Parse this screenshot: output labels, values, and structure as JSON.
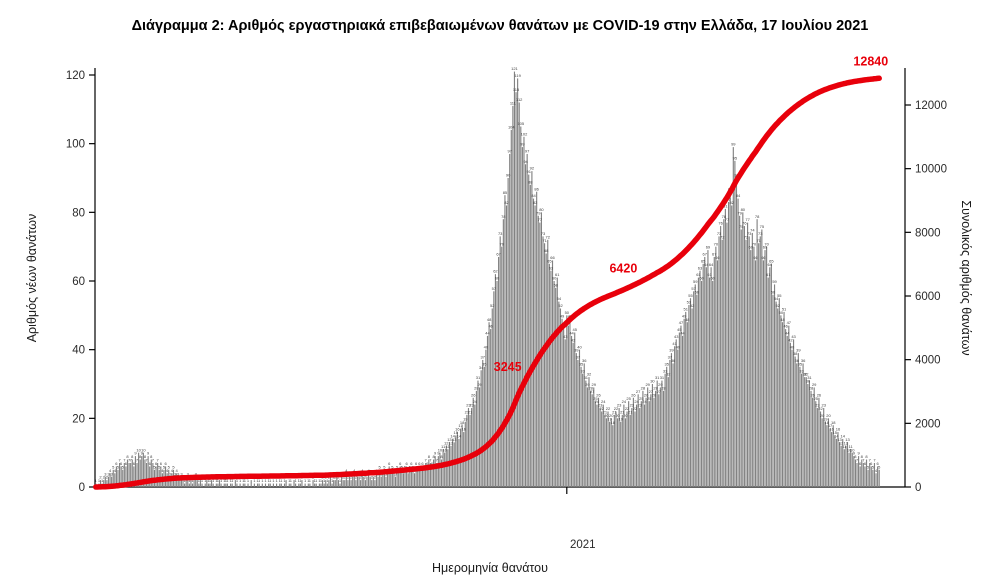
{
  "title": {
    "text": "Διάγραμμα 2: Αριθμός εργαστηριακά επιβεβαιωμένων θανάτων με COVID-19 στην Ελλάδα, 17 Ιουλίου 2021"
  },
  "axes": {
    "x_label": "Ημερομηνία θανάτου",
    "y_left_label": "Αριθμός νέων θανάτων",
    "y_right_label": "Συνολικός αριθμός θανάτων"
  },
  "colors": {
    "bar": "#828282",
    "line": "#e8000b",
    "axis": "#000000",
    "tick_text": "#2b2b2b",
    "bar_label": "#3c3c3c",
    "annotation": "#e8000b"
  },
  "chart_data": {
    "type": "bar",
    "title": "Διάγραμμα 2: Αριθμός εργαστηριακά επιβεβαιωμένων θανάτων με COVID-19 στην Ελλάδα, 17 Ιουλίου 2021",
    "xlabel": "Ημερομηνία θανάτου",
    "ylabel": "Αριθμός νέων θανάτων",
    "ylabel_right": "Συνολικός αριθμός θανάτων",
    "legend": "none",
    "grid": false,
    "x_ticks": [
      {
        "index": 297,
        "label": "2021"
      }
    ],
    "y_left": {
      "min": 0,
      "max": 120,
      "ticks": [
        0,
        20,
        40,
        60,
        80,
        100,
        120
      ]
    },
    "y_right": {
      "min": 0,
      "max": 12000,
      "ticks": [
        0,
        2000,
        4000,
        6000,
        8000,
        10000,
        12000
      ]
    },
    "line_overlay": {
      "name": "cumulative-deaths",
      "derived": "cumulative_sum_of_values",
      "final_value": 12840
    },
    "annotations": [
      {
        "label": "3245",
        "index": 271
      },
      {
        "label": "6420",
        "index": 344
      },
      {
        "label": "12840",
        "index": 494
      }
    ],
    "values": [
      1,
      0,
      1,
      2,
      1,
      2,
      3,
      2,
      3,
      4,
      3,
      5,
      4,
      6,
      5,
      7,
      6,
      5,
      7,
      6,
      8,
      7,
      7,
      8,
      6,
      9,
      7,
      10,
      8,
      9,
      10,
      8,
      7,
      9,
      6,
      8,
      7,
      5,
      6,
      7,
      5,
      6,
      4,
      5,
      6,
      4,
      5,
      3,
      4,
      5,
      3,
      4,
      3,
      2,
      3,
      2,
      1,
      2,
      3,
      1,
      2,
      1,
      2,
      3,
      2,
      1,
      2,
      1,
      0,
      1,
      2,
      1,
      1,
      2,
      1,
      0,
      1,
      1,
      2,
      1,
      0,
      1,
      1,
      1,
      0,
      1,
      1,
      0,
      2,
      1,
      0,
      1,
      0,
      1,
      1,
      0,
      1,
      0,
      2,
      0,
      1,
      0,
      1,
      1,
      0,
      1,
      0,
      1,
      0,
      1,
      1,
      0,
      1,
      0,
      1,
      0,
      1,
      1,
      0,
      1,
      2,
      0,
      1,
      1,
      0,
      2,
      1,
      0,
      1,
      1,
      2,
      0,
      1,
      0,
      1,
      1,
      0,
      2,
      1,
      1,
      0,
      1,
      1,
      2,
      1,
      2,
      1,
      2,
      3,
      1,
      2,
      2,
      3,
      2,
      1,
      3,
      2,
      2,
      4,
      2,
      3,
      2,
      3,
      4,
      2,
      3,
      3,
      2,
      4,
      3,
      2,
      3,
      4,
      3,
      2,
      3,
      2,
      4,
      3,
      5,
      3,
      4,
      5,
      3,
      4,
      6,
      4,
      5,
      4,
      3,
      5,
      4,
      6,
      5,
      4,
      5,
      6,
      4,
      5,
      6,
      5,
      4,
      6,
      5,
      6,
      5,
      6,
      5,
      7,
      6,
      8,
      7,
      6,
      8,
      9,
      7,
      9,
      10,
      8,
      11,
      10,
      12,
      11,
      13,
      12,
      14,
      13,
      15,
      16,
      14,
      17,
      18,
      16,
      19,
      21,
      23,
      21,
      23,
      26,
      24,
      28,
      31,
      29,
      34,
      37,
      35,
      40,
      44,
      48,
      46,
      52,
      57,
      62,
      60,
      67,
      73,
      70,
      78,
      85,
      82,
      90,
      97,
      104,
      111,
      121,
      115,
      119,
      112,
      105,
      99,
      102,
      94,
      97,
      91,
      88,
      92,
      84,
      82,
      86,
      79,
      77,
      80,
      73,
      71,
      68,
      72,
      65,
      63,
      66,
      60,
      58,
      61,
      54,
      52,
      49,
      46,
      43,
      50,
      47,
      49,
      44,
      42,
      45,
      39,
      37,
      40,
      35,
      33,
      36,
      31,
      29,
      32,
      28,
      27,
      29,
      25,
      24,
      26,
      23,
      22,
      24,
      21,
      20,
      22,
      19,
      20,
      18,
      21,
      22,
      20,
      23,
      19,
      21,
      24,
      20,
      22,
      25,
      21,
      23,
      26,
      22,
      24,
      27,
      23,
      25,
      28,
      24,
      26,
      29,
      25,
      27,
      30,
      26,
      28,
      31,
      27,
      29,
      31,
      28,
      33,
      35,
      32,
      37,
      39,
      36,
      41,
      43,
      40,
      45,
      47,
      44,
      49,
      51,
      48,
      53,
      55,
      52,
      57,
      59,
      56,
      61,
      63,
      60,
      65,
      67,
      64,
      69,
      61,
      64,
      60,
      67,
      70,
      66,
      73,
      76,
      72,
      78,
      81,
      77,
      83,
      86,
      82,
      99,
      95,
      90,
      84,
      79,
      75,
      80,
      76,
      72,
      77,
      73,
      69,
      74,
      70,
      66,
      78,
      71,
      73,
      75,
      66,
      69,
      70,
      61,
      64,
      65,
      56,
      59,
      54,
      52,
      55,
      50,
      48,
      51,
      46,
      44,
      47,
      42,
      40,
      43,
      38,
      36,
      39,
      35,
      33,
      36,
      32,
      32,
      30,
      31,
      28,
      26,
      29,
      25,
      23,
      26,
      22,
      20,
      23,
      19,
      18,
      20,
      17,
      16,
      18,
      15,
      14,
      16,
      13,
      12,
      14,
      11,
      12,
      13,
      10,
      11,
      10,
      9,
      8,
      7,
      9,
      6,
      8,
      7,
      6,
      8,
      5,
      7,
      6,
      5,
      7,
      4,
      6,
      5
    ]
  }
}
